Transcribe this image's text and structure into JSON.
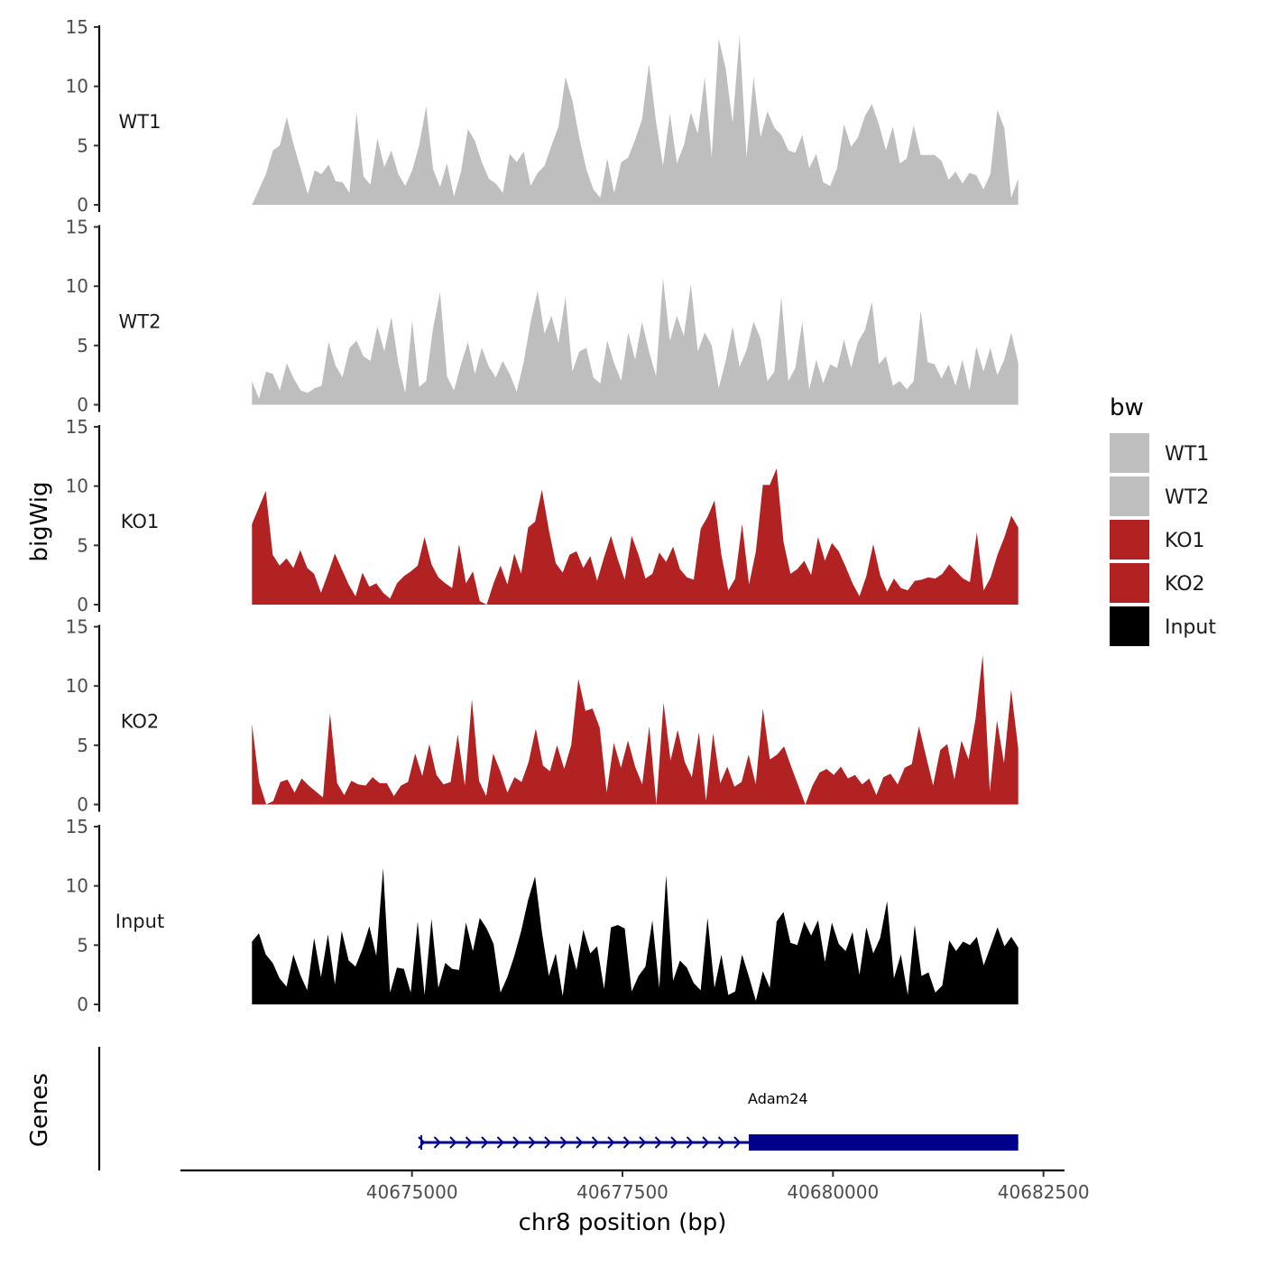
{
  "chart_data": {
    "type": "area",
    "title": "",
    "ylabel": "bigWig",
    "genes_ylabel": "Genes",
    "xlabel": "chr8 position (bp)",
    "xlim": [
      40672250,
      40682750
    ],
    "data_range": [
      40673100,
      40682200
    ],
    "ylim": [
      0,
      15
    ],
    "y_ticks": [
      0,
      5,
      10,
      15
    ],
    "x_ticks": [
      40675000,
      40677500,
      40680000,
      40682500
    ],
    "x_tick_labels": [
      "40675000",
      "40677500",
      "40680000",
      "40682500"
    ],
    "legend": {
      "title": "bw",
      "position": "right",
      "entries": [
        {
          "label": "WT1",
          "color": "#bebebe"
        },
        {
          "label": "WT2",
          "color": "#bebebe"
        },
        {
          "label": "KO1",
          "color": "#b22222"
        },
        {
          "label": "KO2",
          "color": "#b22222"
        },
        {
          "label": "Input",
          "color": "#000000"
        }
      ]
    },
    "series": [
      {
        "name": "WT1",
        "color": "#bebebe",
        "values": [
          0.0,
          1.3,
          2.6,
          4.6,
          5.0,
          7.4,
          5.0,
          3.0,
          0.9,
          2.9,
          2.6,
          3.4,
          2.0,
          1.9,
          1.0,
          7.8,
          2.4,
          1.7,
          5.6,
          3.2,
          4.6,
          2.6,
          1.6,
          2.9,
          5.0,
          8.3,
          3.0,
          1.5,
          3.5,
          0.7,
          2.8,
          6.4,
          5.4,
          3.6,
          2.2,
          1.8,
          1.0,
          4.3,
          3.6,
          4.5,
          1.6,
          2.7,
          3.3,
          5.0,
          6.6,
          10.8,
          8.8,
          5.6,
          3.0,
          1.3,
          0.6,
          3.9,
          1.0,
          3.6,
          4.0,
          5.5,
          7.2,
          11.9,
          7.0,
          3.3,
          7.7,
          3.5,
          5.0,
          7.8,
          6.0,
          10.8,
          4.0,
          14.0,
          11.5,
          6.9,
          14.3,
          4.0,
          10.8,
          5.7,
          7.9,
          6.5,
          5.9,
          4.6,
          4.4,
          5.9,
          3.1,
          4.3,
          1.9,
          1.6,
          3.1,
          6.8,
          4.9,
          5.7,
          7.5,
          8.5,
          6.8,
          4.6,
          6.6,
          3.5,
          3.9,
          6.7,
          4.2,
          4.2,
          4.2,
          3.7,
          2.1,
          2.8,
          1.8,
          2.7,
          2.5,
          1.3,
          2.6,
          8.0,
          6.5,
          0.6,
          2.2
        ]
      },
      {
        "name": "WT2",
        "color": "#bebebe",
        "values": [
          2.0,
          0.5,
          2.8,
          2.6,
          1.2,
          3.5,
          2.2,
          1.2,
          1.0,
          1.4,
          1.6,
          5.3,
          3.3,
          2.3,
          4.8,
          5.4,
          4.1,
          3.7,
          6.6,
          4.5,
          7.4,
          3.5,
          1.0,
          7.1,
          1.5,
          2.0,
          6.5,
          9.5,
          2.4,
          1.2,
          3.4,
          5.3,
          2.6,
          4.8,
          3.2,
          2.3,
          3.7,
          2.6,
          1.1,
          3.6,
          7.0,
          9.6,
          6.0,
          7.5,
          5.2,
          9.1,
          2.8,
          4.5,
          4.8,
          2.3,
          1.8,
          5.4,
          3.5,
          2.0,
          6.1,
          3.8,
          7.0,
          4.5,
          2.4,
          10.7,
          5.4,
          7.5,
          5.8,
          10.2,
          4.5,
          6.1,
          5.0,
          1.4,
          3.7,
          6.6,
          3.2,
          4.6,
          7.0,
          5.6,
          2.0,
          2.8,
          9.1,
          2.0,
          3.1,
          7.0,
          1.3,
          3.8,
          1.8,
          3.4,
          3.1,
          5.5,
          3.1,
          5.3,
          6.3,
          8.7,
          3.4,
          4.1,
          1.6,
          2.0,
          1.3,
          2.0,
          7.9,
          3.6,
          3.4,
          2.2,
          3.4,
          1.6,
          3.8,
          1.2,
          4.9,
          2.8,
          4.8,
          2.5,
          3.8,
          6.1,
          3.5
        ]
      },
      {
        "name": "KO1",
        "color": "#b22222",
        "values": [
          6.8,
          8.2,
          9.6,
          4.2,
          3.3,
          3.9,
          3.1,
          4.6,
          3.1,
          2.6,
          1.0,
          2.6,
          4.3,
          3.0,
          1.7,
          0.7,
          2.7,
          1.5,
          1.8,
          1.0,
          0.5,
          1.8,
          2.4,
          2.8,
          3.3,
          5.7,
          3.4,
          2.3,
          1.8,
          1.4,
          5.1,
          1.8,
          2.8,
          0.3,
          0.0,
          1.8,
          3.3,
          1.7,
          4.3,
          2.6,
          6.5,
          7.0,
          9.7,
          6.3,
          3.5,
          2.7,
          4.2,
          4.5,
          3.1,
          4.1,
          2.0,
          4.0,
          5.8,
          3.8,
          2.1,
          5.8,
          4.2,
          2.2,
          2.6,
          4.4,
          3.6,
          4.9,
          3.0,
          2.3,
          2.1,
          6.4,
          7.4,
          8.8,
          4.2,
          1.2,
          2.2,
          6.8,
          1.7,
          4.5,
          10.1,
          10.1,
          11.5,
          5.3,
          2.6,
          3.0,
          3.7,
          2.5,
          5.7,
          3.7,
          5.2,
          4.5,
          3.2,
          1.8,
          0.7,
          2.4,
          5.1,
          2.5,
          1.1,
          2.2,
          1.4,
          1.2,
          2.0,
          2.1,
          2.3,
          2.2,
          2.6,
          3.4,
          2.8,
          2.2,
          1.9,
          6.1,
          1.2,
          2.3,
          4.2,
          5.7,
          7.5,
          6.5
        ]
      },
      {
        "name": "KO2",
        "color": "#b22222",
        "values": [
          6.8,
          1.9,
          0.0,
          0.3,
          1.9,
          2.1,
          1.0,
          2.2,
          1.6,
          1.1,
          0.6,
          7.7,
          1.8,
          0.8,
          2.0,
          1.7,
          1.6,
          2.3,
          1.8,
          1.8,
          0.7,
          1.6,
          1.9,
          4.3,
          2.4,
          5.1,
          2.5,
          1.7,
          1.9,
          5.9,
          1.6,
          8.9,
          2.0,
          0.7,
          4.3,
          2.8,
          1.0,
          2.3,
          1.9,
          3.6,
          6.4,
          3.3,
          2.8,
          5.0,
          3.0,
          5.0,
          10.6,
          7.9,
          8.1,
          6.5,
          1.0,
          5.2,
          3.1,
          5.4,
          3.2,
          1.7,
          6.6,
          0.0,
          8.6,
          3.7,
          6.3,
          3.6,
          2.3,
          6.1,
          0.3,
          6.0,
          1.8,
          3.2,
          1.5,
          1.9,
          4.2,
          1.7,
          8.1,
          3.8,
          4.2,
          4.9,
          3.2,
          1.6,
          0.0,
          1.6,
          2.7,
          3.0,
          2.5,
          3.2,
          2.2,
          2.5,
          1.7,
          2.2,
          0.8,
          2.3,
          2.6,
          1.7,
          3.1,
          3.4,
          6.6,
          4.1,
          1.6,
          4.6,
          5.1,
          2.1,
          5.4,
          3.8,
          7.3,
          12.6,
          1.1,
          7.1,
          3.5,
          9.7,
          4.7
        ]
      },
      {
        "name": "Input",
        "color": "#000000",
        "values": [
          5.3,
          6.0,
          4.2,
          3.5,
          2.2,
          1.5,
          4.2,
          2.5,
          1.2,
          5.6,
          2.3,
          5.9,
          1.7,
          6.2,
          3.7,
          3.2,
          4.7,
          6.6,
          4.1,
          11.5,
          1.0,
          3.1,
          3.0,
          1.0,
          7.0,
          0.8,
          7.2,
          1.4,
          3.5,
          3.0,
          2.9,
          6.9,
          4.5,
          7.3,
          6.4,
          5.1,
          1.0,
          2.3,
          4.1,
          6.2,
          8.8,
          10.8,
          6.1,
          2.4,
          4.3,
          0.7,
          5.2,
          2.9,
          6.3,
          4.3,
          4.9,
          1.3,
          6.5,
          6.7,
          6.4,
          1.1,
          2.4,
          3.2,
          7.1,
          1.4,
          10.9,
          2.0,
          3.7,
          3.1,
          1.8,
          1.2,
          7.3,
          1.4,
          4.2,
          0.8,
          1.1,
          4.2,
          2.3,
          0.3,
          2.8,
          1.4,
          7.0,
          7.8,
          5.2,
          5.0,
          7.0,
          5.8,
          7.1,
          3.6,
          6.9,
          5.1,
          4.5,
          6.1,
          2.5,
          6.5,
          4.3,
          5.6,
          8.7,
          2.2,
          4.2,
          0.8,
          6.7,
          2.4,
          2.7,
          1.0,
          1.6,
          5.4,
          4.5,
          5.3,
          5.0,
          5.7,
          3.3,
          4.9,
          6.5,
          4.9,
          5.7,
          4.8
        ]
      }
    ],
    "genes": [
      {
        "name": "Adam24",
        "strand": "+",
        "start": 40675100,
        "end": 40682200,
        "thick_start": 40679000,
        "thick_end": 40682200,
        "color": "#00008b"
      }
    ]
  }
}
